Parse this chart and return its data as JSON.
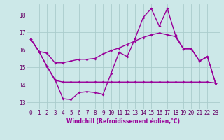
{
  "background_color": "#cce8e8",
  "grid_color": "#aacccc",
  "line_color": "#990099",
  "line_width": 1.0,
  "marker": "D",
  "marker_size": 2.0,
  "x_ticks": [
    0,
    1,
    2,
    3,
    4,
    5,
    6,
    7,
    8,
    9,
    10,
    11,
    12,
    13,
    14,
    15,
    16,
    17,
    18,
    19,
    20,
    21,
    22,
    23
  ],
  "x_tick_labels": [
    "0",
    "1",
    "2",
    "3",
    "4",
    "5",
    "6",
    "7",
    "8",
    "9",
    "10",
    "11",
    "12",
    "13",
    "14",
    "15",
    "16",
    "17",
    "18",
    "19",
    "20",
    "21",
    "22",
    "23"
  ],
  "xlabel": "Windchill (Refroidissement éolien,°C)",
  "ylim": [
    12.6,
    18.6
  ],
  "yticks": [
    13,
    14,
    15,
    16,
    17,
    18
  ],
  "line1": [
    16.6,
    15.9,
    15.8,
    15.25,
    15.25,
    15.35,
    15.45,
    15.45,
    15.5,
    15.75,
    15.95,
    16.1,
    16.3,
    16.5,
    16.7,
    16.85,
    16.95,
    16.85,
    16.75,
    16.05,
    16.05,
    15.35,
    15.6,
    14.1
  ],
  "line2": [
    16.6,
    15.9,
    15.05,
    14.3,
    13.2,
    13.15,
    13.55,
    13.6,
    13.55,
    13.45,
    14.65,
    15.85,
    15.6,
    16.65,
    17.85,
    18.35,
    17.35,
    18.35,
    16.85,
    16.05,
    16.05,
    15.35,
    15.6,
    14.1
  ],
  "line3": [
    16.6,
    15.9,
    15.05,
    14.25,
    14.15,
    14.15,
    14.15,
    14.15,
    14.15,
    14.15,
    14.15,
    14.15,
    14.15,
    14.15,
    14.15,
    14.15,
    14.15,
    14.15,
    14.15,
    14.15,
    14.15,
    14.15,
    14.15,
    14.1
  ]
}
